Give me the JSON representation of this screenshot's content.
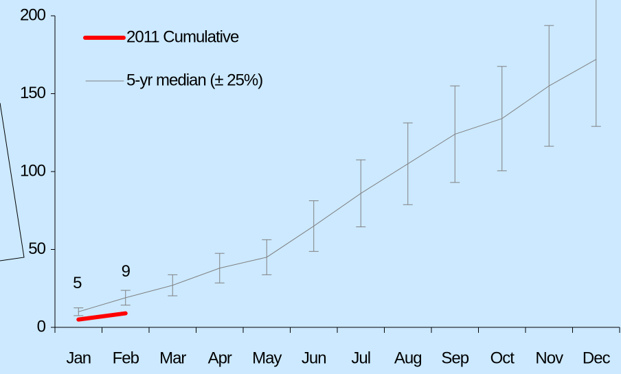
{
  "chart_data": {
    "type": "line",
    "categories": [
      "Jan",
      "Feb",
      "Mar",
      "Apr",
      "May",
      "Jun",
      "Jul",
      "Aug",
      "Sep",
      "Oct",
      "Nov",
      "Dec"
    ],
    "series": [
      {
        "name": "2011 Cumulative",
        "color": "#ff0000",
        "values": [
          5,
          9,
          null,
          null,
          null,
          null,
          null,
          null,
          null,
          null,
          null,
          null
        ],
        "value_labels": [
          "5",
          "9",
          null,
          null,
          null,
          null,
          null,
          null,
          null,
          null,
          null,
          null
        ]
      },
      {
        "name": "5-yr median (± 25%)",
        "color": "#808080",
        "values": [
          10,
          19,
          27,
          38,
          45,
          65,
          86,
          105,
          124,
          134,
          155,
          172
        ],
        "errors": [
          2.5,
          4.75,
          6.75,
          9.5,
          11.25,
          16.25,
          21.5,
          26.25,
          31,
          33.5,
          38.75,
          43
        ]
      }
    ],
    "ylim": [
      0,
      200
    ],
    "yticks": [
      0,
      50,
      100,
      150,
      200
    ],
    "legend": "upper left"
  }
}
